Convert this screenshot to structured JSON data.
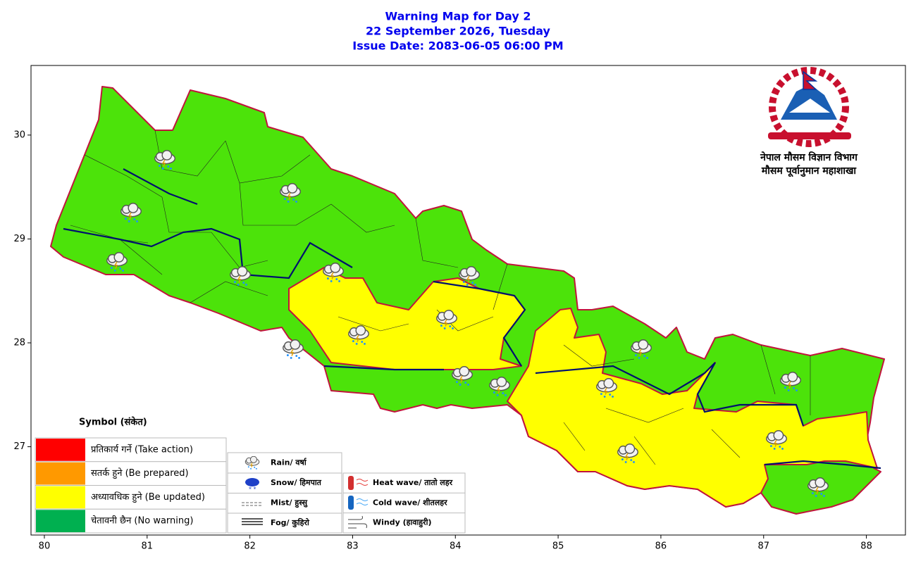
{
  "title": [
    "Warning Map for Day 2",
    "22 September 2026, Tuesday",
    "Issue Date: 2083-06-05 06:00 PM"
  ],
  "map": {
    "xlim": [
      79.87,
      88.38
    ],
    "ylim": [
      26.15,
      30.67
    ],
    "xticks": [
      80,
      81,
      82,
      83,
      84,
      85,
      86,
      87,
      88
    ],
    "yticks": [
      27,
      28,
      29,
      30
    ]
  },
  "agency": [
    "नेपाल मौसम विज्ञान विभाग",
    "मौसम पूर्वानुमान महाशाखा"
  ],
  "legend": {
    "title": "Symbol (संकेत)",
    "warning_levels": [
      {
        "label": "प्रतिकार्य गर्ने (Take action)",
        "color": "#ff0000"
      },
      {
        "label": "सतर्क हुने (Be prepared)",
        "color": "#ff9900"
      },
      {
        "label": "अध्यावधिक हुने (Be updated)",
        "color": "#ffff00"
      },
      {
        "label": "चेतावनी छैन (No warning)",
        "color": "#00b050"
      }
    ],
    "symbols": [
      "Rain/ वर्षा",
      "Snow/ हिमपात",
      "Mist/ हुस्सु",
      "Fog/ कुहिरो",
      "Heat wave/ तातो लहर",
      "Cold wave/ शीतलहर",
      "Windy (हावाहुरी)"
    ]
  }
}
